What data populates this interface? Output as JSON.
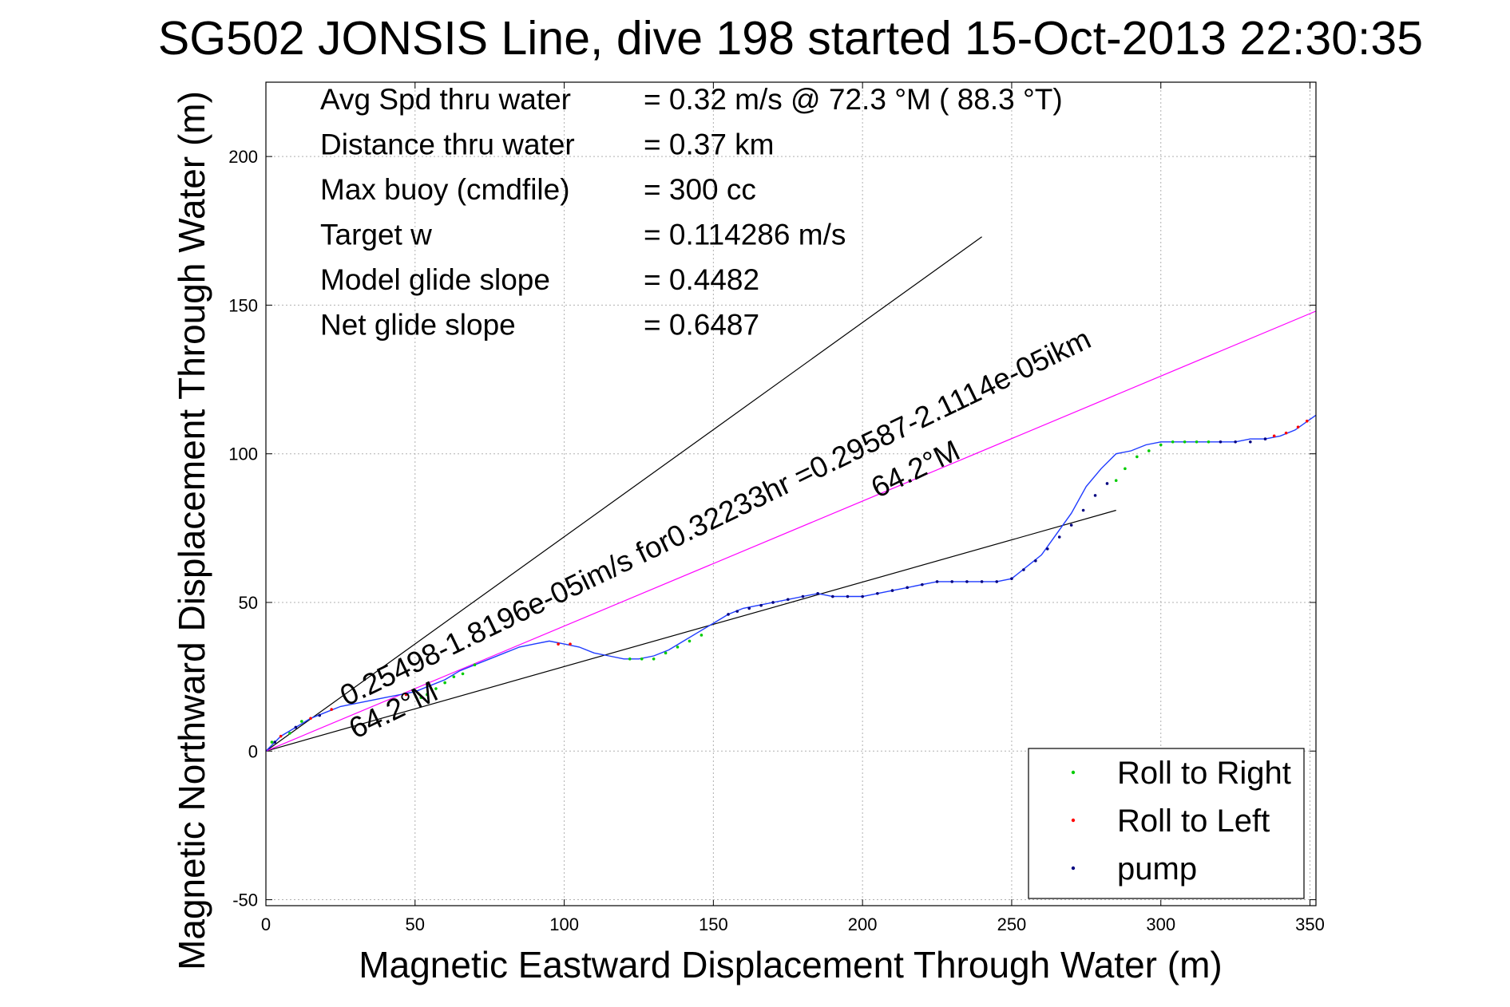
{
  "chart_data": {
    "type": "line",
    "title": "SG502 JONSIS Line, dive 198 started 15-Oct-2013 22:30:35",
    "xlabel": "Magnetic Eastward Displacement Through Water (m)",
    "ylabel": "Magnetic Northward Displacement Through Water (m)",
    "xlim": [
      0,
      352
    ],
    "ylim": [
      -52,
      225
    ],
    "xticks": [
      0,
      50,
      100,
      150,
      200,
      250,
      300,
      350
    ],
    "yticks": [
      -50,
      0,
      50,
      100,
      150,
      200
    ],
    "grid": true,
    "legend_position": "bottom-right",
    "info_lines": [
      {
        "label": "Avg Spd thru water",
        "value": "=  0.32 m/s @  72.3 °M ( 88.3 °T)"
      },
      {
        "label": "Distance thru water",
        "value": "=  0.37 km"
      },
      {
        "label": "Max buoy (cmdfile)",
        "value": "= 300 cc"
      },
      {
        "label": "Target w",
        "value": "= 0.114286 m/s"
      },
      {
        "label": "Model glide slope",
        "value": "= 0.4482"
      },
      {
        "label": "Net glide slope",
        "value": "= 0.6487"
      }
    ],
    "annotations": [
      {
        "text": "0.25498-1.8196e-05im/s for0.32233hr =0.29587-2.1114e-05ikm",
        "x": 27,
        "y": 15,
        "angle_deg": 64.2
      },
      {
        "text": "64.2°M",
        "x": 30,
        "y": 4,
        "angle_deg": 64.2
      },
      {
        "text": "64.2°M",
        "x": 205,
        "y": 85,
        "angle_deg": 64.2
      }
    ],
    "reference_lines": [
      {
        "x": [
          0,
          240
        ],
        "y": [
          0,
          173
        ]
      },
      {
        "x": [
          0,
          285
        ],
        "y": [
          0,
          81
        ]
      }
    ],
    "magenta_line": {
      "x": [
        0,
        352
      ],
      "y": [
        0,
        148
      ]
    },
    "colors": {
      "track": "#1f3bff",
      "magenta": "#ff00ff",
      "roll_right": "#00cc00",
      "roll_left": "#ff0000",
      "pump": "#000080",
      "reference": "#000000",
      "grid": "#b0b0b0"
    },
    "series": [
      {
        "name": "track",
        "x": [
          0,
          5,
          10,
          15,
          20,
          25,
          30,
          35,
          40,
          45,
          50,
          55,
          60,
          65,
          70,
          75,
          80,
          85,
          90,
          95,
          100,
          105,
          110,
          115,
          120,
          125,
          130,
          135,
          140,
          145,
          150,
          155,
          160,
          165,
          170,
          175,
          180,
          185,
          190,
          195,
          200,
          205,
          210,
          215,
          220,
          225,
          230,
          235,
          240,
          245,
          250,
          255,
          260,
          265,
          270,
          275,
          280,
          285,
          290,
          295,
          300,
          305,
          310,
          315,
          320,
          325,
          330,
          335,
          340,
          345,
          352
        ],
        "y": [
          0,
          5,
          8,
          11,
          13,
          15,
          16,
          17,
          18,
          19,
          20,
          22,
          24,
          27,
          29,
          31,
          33,
          35,
          36,
          37,
          36,
          35,
          33,
          32,
          31,
          31,
          32,
          34,
          37,
          40,
          43,
          46,
          48,
          49,
          50,
          51,
          52,
          53,
          52,
          52,
          52,
          53,
          54,
          55,
          56,
          57,
          57,
          57,
          57,
          57,
          58,
          62,
          66,
          73,
          80,
          89,
          95,
          100,
          101,
          103,
          104,
          104,
          104,
          104,
          104,
          104,
          105,
          105,
          106,
          108,
          113
        ]
      },
      {
        "name": "Roll to Right",
        "x": [
          2,
          8,
          12,
          52,
          54,
          57,
          60,
          63,
          66,
          70,
          122,
          126,
          130,
          134,
          138,
          142,
          146,
          285,
          288,
          292,
          296,
          300,
          304,
          308,
          312,
          316
        ],
        "y": [
          3,
          6,
          10,
          18,
          19,
          21,
          23,
          25,
          26,
          29,
          31,
          31,
          31,
          33,
          35,
          37,
          39,
          91,
          95,
          99,
          101,
          103,
          104,
          104,
          104,
          104
        ]
      },
      {
        "name": "Roll to Left",
        "x": [
          5,
          15,
          22,
          47,
          98,
          102,
          338,
          342,
          346,
          349
        ],
        "y": [
          5,
          11,
          14,
          19,
          36,
          36,
          106,
          107,
          109,
          111
        ]
      },
      {
        "name": "pump",
        "x": [
          3,
          10,
          18,
          155,
          158,
          162,
          166,
          170,
          175,
          180,
          185,
          190,
          195,
          200,
          205,
          210,
          215,
          220,
          225,
          230,
          235,
          240,
          245,
          250,
          254,
          258,
          262,
          266,
          270,
          274,
          278,
          282,
          320,
          325,
          330,
          335
        ],
        "y": [
          3,
          8,
          12,
          46,
          47,
          48,
          49,
          50,
          51,
          52,
          53,
          52,
          52,
          52,
          53,
          54,
          55,
          56,
          57,
          57,
          57,
          57,
          57,
          58,
          61,
          64,
          68,
          72,
          76,
          81,
          86,
          90,
          104,
          104,
          104,
          105
        ]
      }
    ],
    "legend": [
      "Roll to Right",
      "Roll to Left",
      "pump"
    ]
  }
}
